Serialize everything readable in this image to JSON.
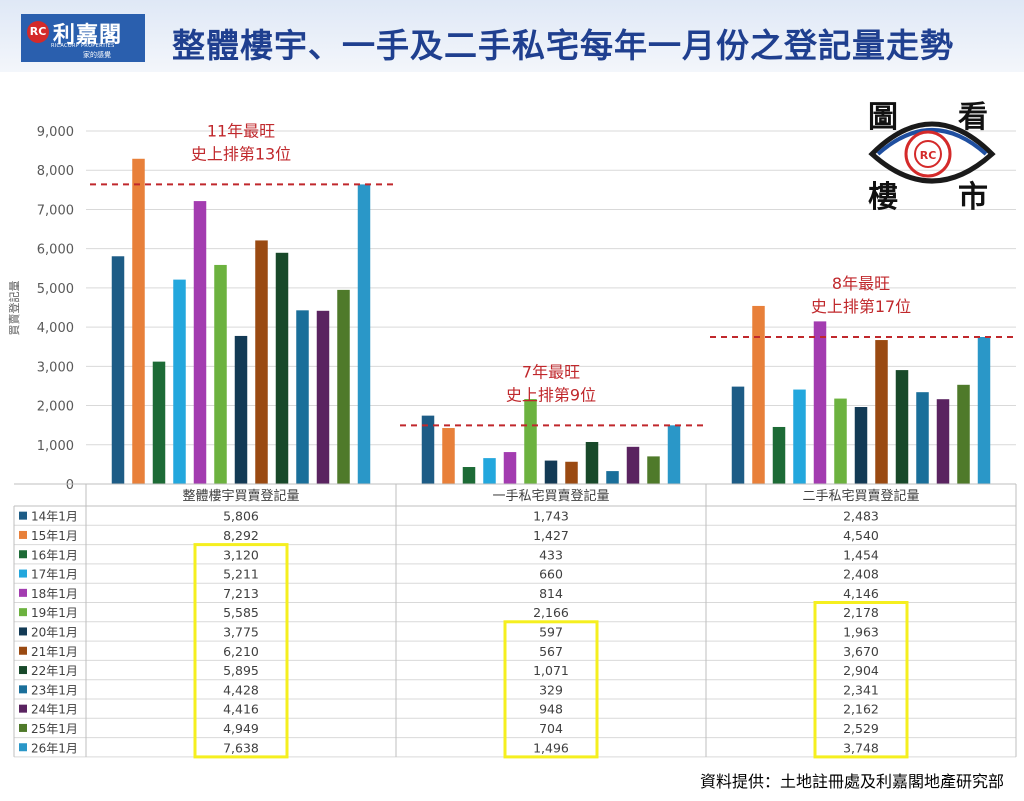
{
  "header": {
    "logo_main": "利嘉閣",
    "logo_badge": "RC",
    "logo_sub": "RICACORP PROPERTIES",
    "logo_tag": "家的感覺",
    "title": "整體樓宇、一手及二手私宅每年一月份之登記量走勢"
  },
  "stamp": {
    "chars": [
      "圖",
      "看",
      "樓",
      "市"
    ],
    "badge": "RC"
  },
  "source": "資料提供：土地註冊處及利嘉閣地產研究部",
  "colors": {
    "title": "#1f3f8f",
    "annotation": "#c0282c",
    "highlight_box": "#f5ef1f",
    "series": [
      "#1d5c86",
      "#e8803a",
      "#1d6b36",
      "#23a7dd",
      "#a33cb0",
      "#6cb23f",
      "#133a55",
      "#9a4a12",
      "#18492a",
      "#1a6f9a",
      "#5a2360",
      "#4f7a2a",
      "#2a97c8"
    ]
  },
  "chart_data": {
    "type": "bar",
    "ylabel": "買賣登記量",
    "ylim": [
      0,
      9000
    ],
    "yticks": [
      "0",
      "1,000",
      "2,000",
      "3,000",
      "4,000",
      "5,000",
      "6,000",
      "7,000",
      "8,000",
      "9,000"
    ],
    "categories": [
      "整體樓宇買賣登記量",
      "一手私宅買賣登記量",
      "二手私宅買賣登記量"
    ],
    "series": [
      {
        "name": "14年1月",
        "values": [
          5806,
          1743,
          2483
        ],
        "labels": [
          "5,806",
          "1,743",
          "2,483"
        ]
      },
      {
        "name": "15年1月",
        "values": [
          8292,
          1427,
          4540
        ],
        "labels": [
          "8,292",
          "1,427",
          "4,540"
        ]
      },
      {
        "name": "16年1月",
        "values": [
          3120,
          433,
          1454
        ],
        "labels": [
          "3,120",
          "433",
          "1,454"
        ]
      },
      {
        "name": "17年1月",
        "values": [
          5211,
          660,
          2408
        ],
        "labels": [
          "5,211",
          "660",
          "2,408"
        ]
      },
      {
        "name": "18年1月",
        "values": [
          7213,
          814,
          4146
        ],
        "labels": [
          "7,213",
          "814",
          "4,146"
        ]
      },
      {
        "name": "19年1月",
        "values": [
          5585,
          2166,
          2178
        ],
        "labels": [
          "5,585",
          "2,166",
          "2,178"
        ]
      },
      {
        "name": "20年1月",
        "values": [
          3775,
          597,
          1963
        ],
        "labels": [
          "3,775",
          "597",
          "1,963"
        ]
      },
      {
        "name": "21年1月",
        "values": [
          6210,
          567,
          3670
        ],
        "labels": [
          "6,210",
          "567",
          "3,670"
        ]
      },
      {
        "name": "22年1月",
        "values": [
          5895,
          1071,
          2904
        ],
        "labels": [
          "5,895",
          "1,071",
          "2,904"
        ]
      },
      {
        "name": "23年1月",
        "values": [
          4428,
          329,
          2341
        ],
        "labels": [
          "4,428",
          "329",
          "2,341"
        ]
      },
      {
        "name": "24年1月",
        "values": [
          4416,
          948,
          2162
        ],
        "labels": [
          "4,416",
          "948",
          "2,162"
        ]
      },
      {
        "name": "25年1月",
        "values": [
          4949,
          704,
          2529
        ],
        "labels": [
          "4,949",
          "704",
          "2,529"
        ]
      },
      {
        "name": "26年1月",
        "values": [
          7638,
          1496,
          3748
        ],
        "labels": [
          "7,638",
          "1,496",
          "3,748"
        ]
      }
    ],
    "annotations": [
      {
        "group": 0,
        "lines": [
          "11年最旺",
          "史上排第13位"
        ],
        "reference_value": 7638
      },
      {
        "group": 1,
        "lines": [
          "7年最旺",
          "史上排第9位"
        ],
        "reference_value": 1496
      },
      {
        "group": 2,
        "lines": [
          "8年最旺",
          "史上排第17位"
        ],
        "reference_value": 3748
      }
    ],
    "highlighted_ranges": [
      {
        "group": 0,
        "from_series": 2,
        "to_series": 12
      },
      {
        "group": 1,
        "from_series": 6,
        "to_series": 12
      },
      {
        "group": 2,
        "from_series": 5,
        "to_series": 12
      }
    ],
    "grid": true,
    "legend": "table-left"
  }
}
